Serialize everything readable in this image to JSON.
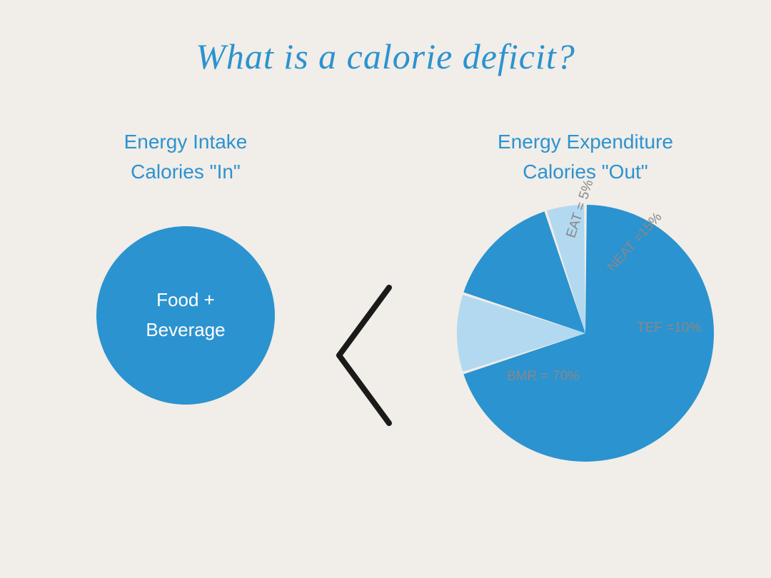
{
  "title": "What is a calorie deficit?",
  "colors": {
    "background": "#f1ede8",
    "primary_blue": "#2b93d0",
    "light_blue": "#b2d9ef",
    "white": "#ffffff",
    "gray_text": "#888888",
    "dark_line": "#1a1a1a"
  },
  "left": {
    "heading_line1": "Energy Intake",
    "heading_line2": "Calories \"In\"",
    "circle_line1": "Food +",
    "circle_line2": "Beverage",
    "circle_color": "#2b93d0",
    "circle_text_color": "#ffffff"
  },
  "comparison_symbol": "<",
  "right": {
    "heading_line1": "Energy Expenditure",
    "heading_line2": "Calories \"Out\"",
    "pie": {
      "type": "pie",
      "slices": [
        {
          "label": "BMR = 70%",
          "value": 70,
          "color": "#2b93d0",
          "text_color": "#888888"
        },
        {
          "label": "TEF =10%",
          "value": 10,
          "color": "#b2d9ef",
          "text_color": "#888888"
        },
        {
          "label": "NEAT =15%",
          "value": 15,
          "color": "#2b93d0",
          "text_color": "#888888"
        },
        {
          "label": "EAT = 5%",
          "value": 5,
          "color": "#b2d9ef",
          "text_color": "#888888"
        }
      ],
      "start_angle_deg": -90,
      "gap_deg": 1.2,
      "radius": 180,
      "diameter": 360
    }
  },
  "typography": {
    "title_fontsize": 50,
    "section_label_fontsize": 28,
    "circle_text_fontsize": 26,
    "slice_label_fontsize": 19
  }
}
